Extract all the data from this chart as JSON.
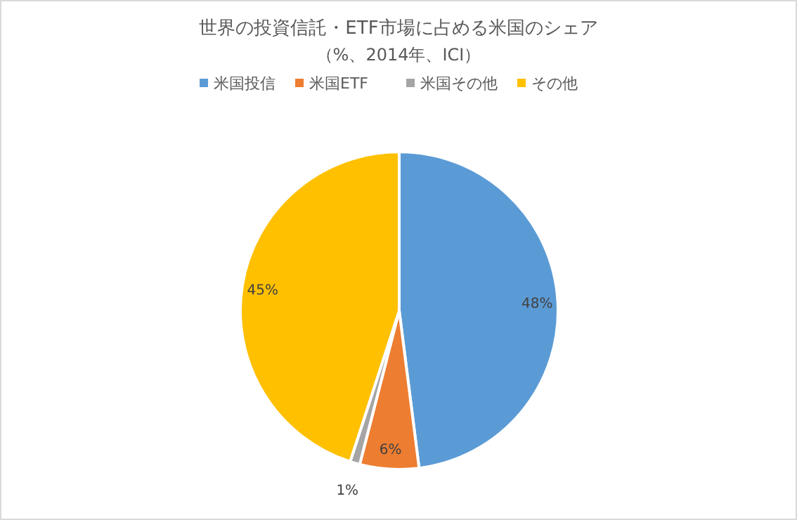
{
  "chart_data": {
    "type": "pie",
    "title": "世界の投資信託・ETF市場に占める米国のシェア",
    "subtitle": "（%、2014年、ICI）",
    "categories": [
      "米国投信",
      "米国ETF",
      "米国その他",
      "その他"
    ],
    "values": [
      48,
      6,
      1,
      45
    ],
    "colors": [
      "#5b9bd5",
      "#ed7d31",
      "#a5a5a5",
      "#ffc000"
    ],
    "value_labels": [
      "48%",
      "6%",
      "1%",
      "45%"
    ],
    "legend": "top"
  }
}
